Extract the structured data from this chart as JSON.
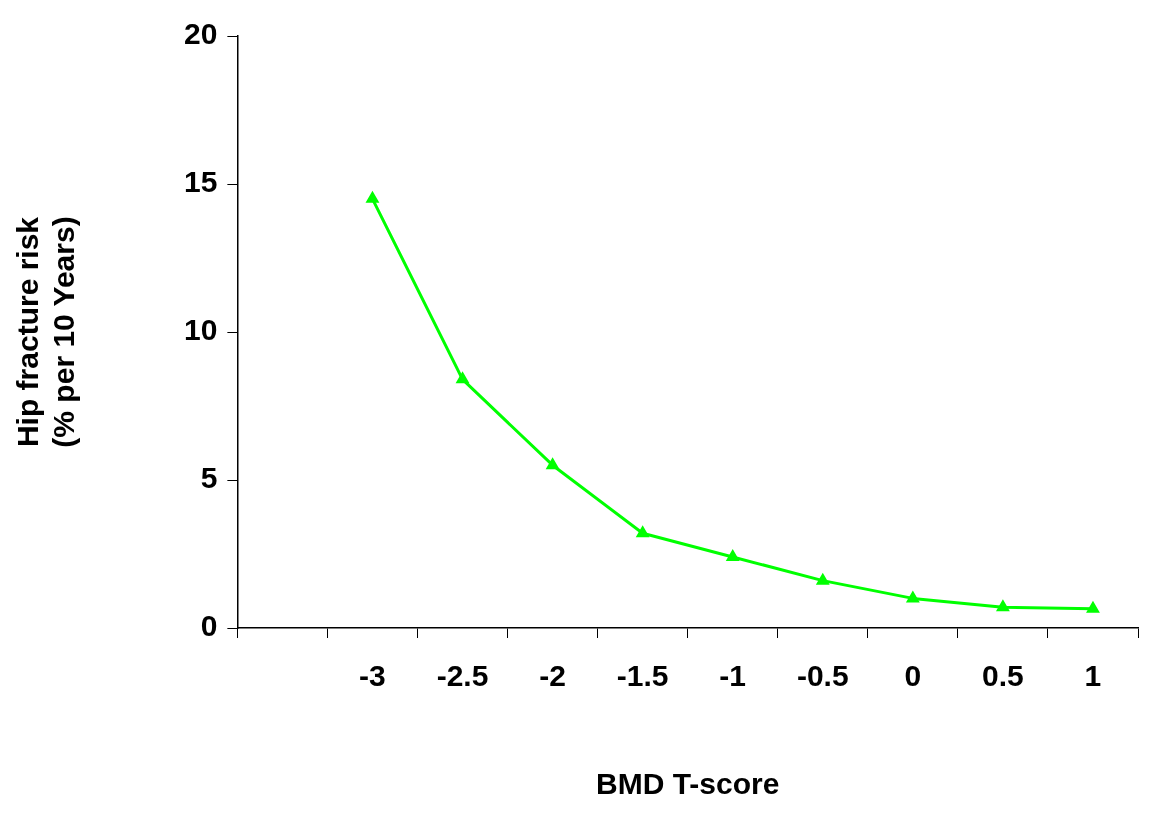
{
  "chart_data": {
    "type": "line",
    "xlabel": "BMD T-score",
    "ylabel": "Hip fracture risk\n(% per 10 Years)",
    "categories": [
      null,
      "-3",
      "-2.5",
      "-2",
      "-1.5",
      "-1",
      "-0.5",
      "0",
      "0.5",
      "1"
    ],
    "series": [
      {
        "color": "#00ff00",
        "values": [
          null,
          14.5,
          8.4,
          5.5,
          3.2,
          2.4,
          1.6,
          1.0,
          0.7,
          0.65
        ]
      }
    ],
    "ylim": [
      0,
      20
    ],
    "yticks": [
      0,
      5,
      10,
      15,
      20
    ],
    "grid": false,
    "legend": false,
    "marker": "triangle",
    "line_style": "solid"
  }
}
